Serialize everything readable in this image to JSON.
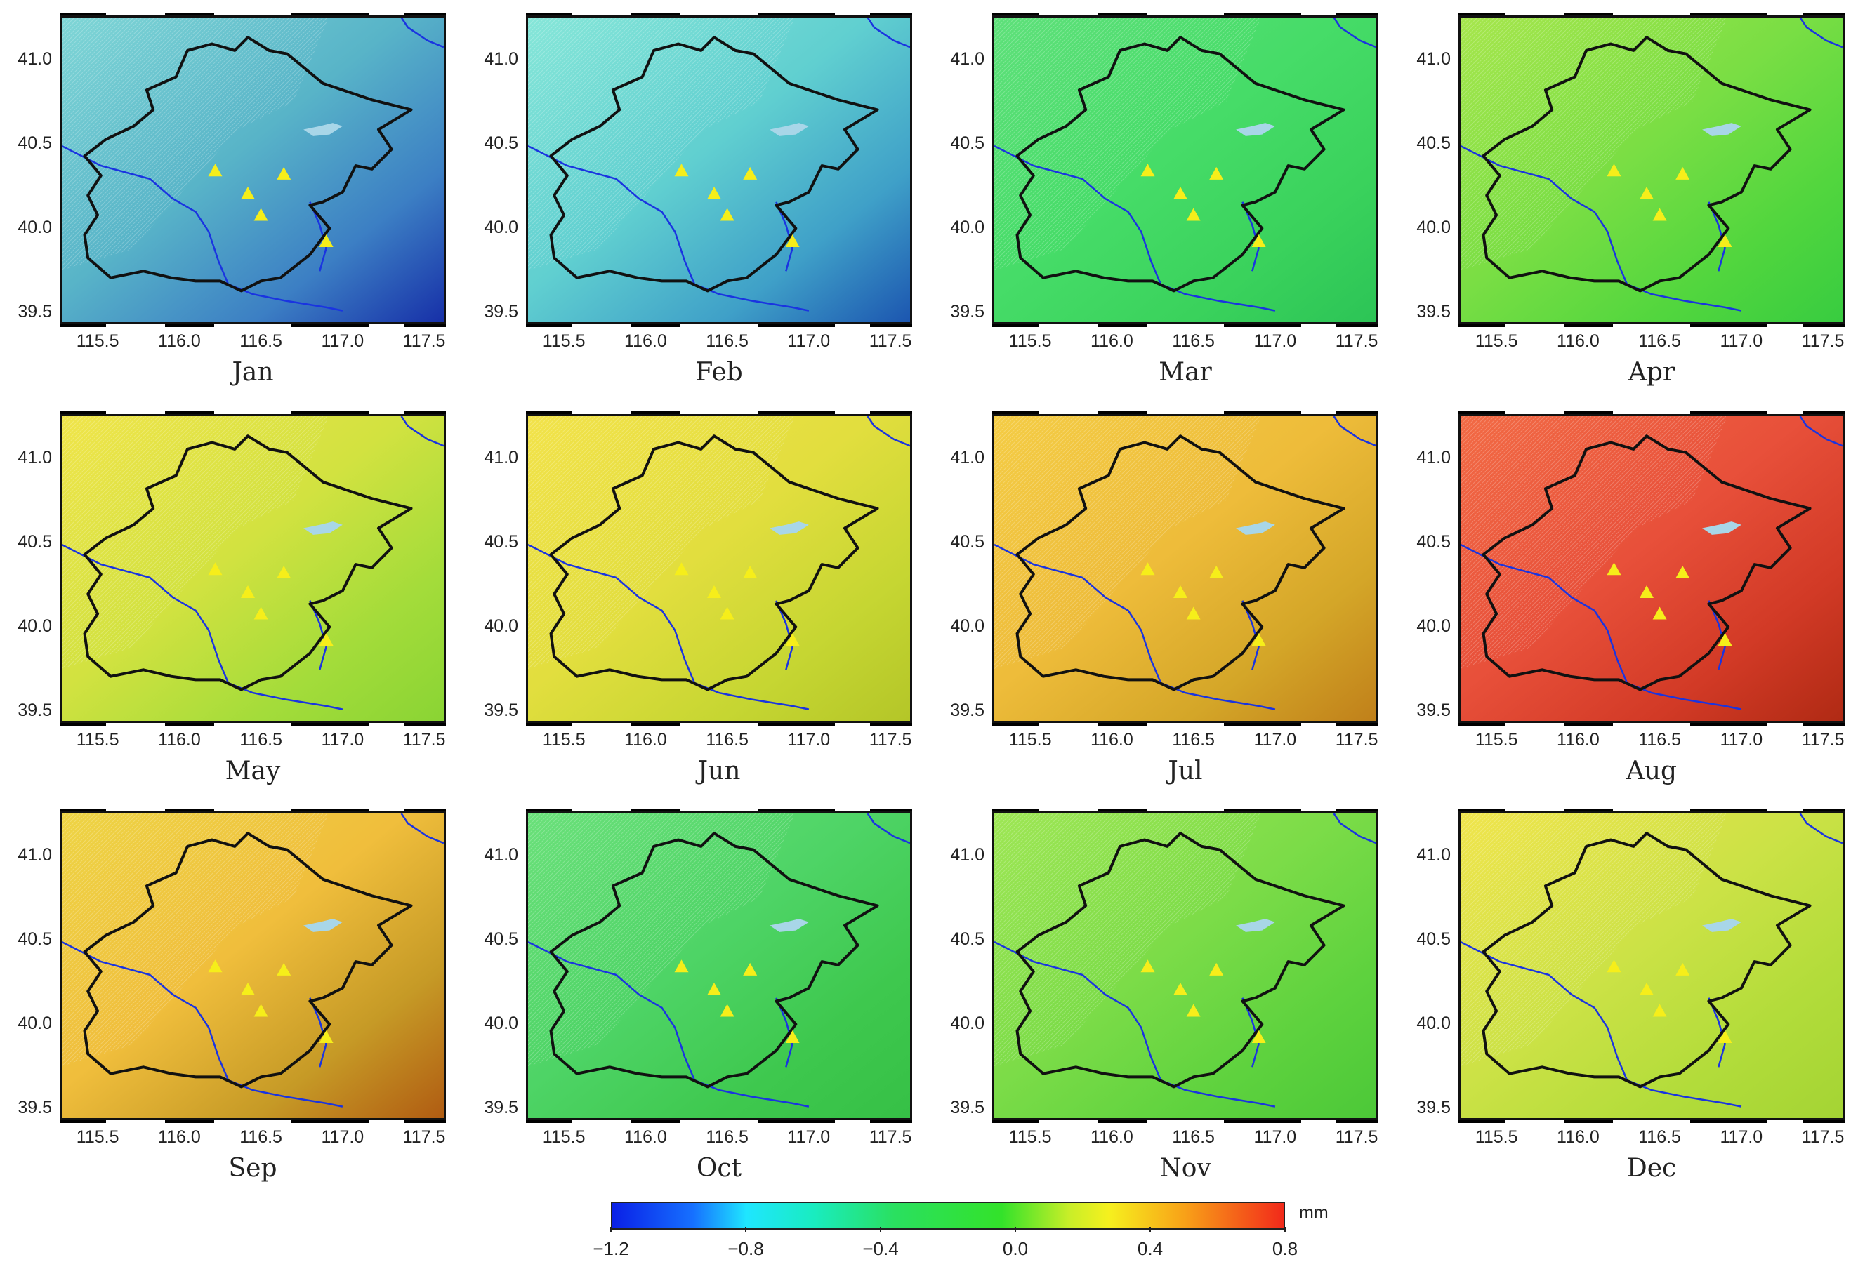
{
  "figure": {
    "y_ticks": [
      "41.0",
      "40.5",
      "40.0",
      "39.5"
    ],
    "x_ticks": [
      "115.5",
      "116.0",
      "116.5",
      "117.0",
      "117.5"
    ],
    "panels": [
      {
        "month": "Jan",
        "palette": [
          "#7fd6d6",
          "#58b4c8",
          "#3c7fc4",
          "#1730a8"
        ]
      },
      {
        "month": "Feb",
        "palette": [
          "#86e6d8",
          "#60cfd0",
          "#3fa0c8",
          "#1c56b0"
        ]
      },
      {
        "month": "Mar",
        "palette": [
          "#5ee07a",
          "#46dc68",
          "#3ad25c",
          "#2cc456"
        ]
      },
      {
        "month": "Apr",
        "palette": [
          "#a6e64c",
          "#7ade44",
          "#52d63e",
          "#38cc40"
        ]
      },
      {
        "month": "May",
        "palette": [
          "#f0e44a",
          "#d2e240",
          "#a4dc3a",
          "#8ad434"
        ]
      },
      {
        "month": "Jun",
        "palette": [
          "#f2e24a",
          "#e2de3e",
          "#c6d632",
          "#b4c628"
        ]
      },
      {
        "month": "Jul",
        "palette": [
          "#f4cc44",
          "#eebc3a",
          "#d4a628",
          "#c0801a"
        ]
      },
      {
        "month": "Aug",
        "palette": [
          "#f26a44",
          "#e8503a",
          "#d23a26",
          "#b02a14"
        ]
      },
      {
        "month": "Sep",
        "palette": [
          "#eed444",
          "#f0be3c",
          "#c69a26",
          "#b05c12"
        ]
      },
      {
        "month": "Oct",
        "palette": [
          "#6ae07a",
          "#4ed466",
          "#3ec84e",
          "#36c046"
        ]
      },
      {
        "month": "Nov",
        "palette": [
          "#9ee654",
          "#7cdc48",
          "#5ed23e",
          "#4cc838"
        ]
      },
      {
        "month": "Dec",
        "palette": [
          "#f0e44c",
          "#cce246",
          "#b2dc3a",
          "#a4d434"
        ]
      }
    ],
    "stations_color": "#f6ee1a",
    "border_color": "#111111",
    "river_color": "#1a34e0",
    "reservoir_color": "#a8d6e8"
  },
  "colorbar": {
    "unit": "mm",
    "ticks": [
      "−1.2",
      "−0.8",
      "−0.4",
      "0.0",
      "0.4",
      "0.8"
    ],
    "range": [
      -1.2,
      0.8
    ]
  }
}
